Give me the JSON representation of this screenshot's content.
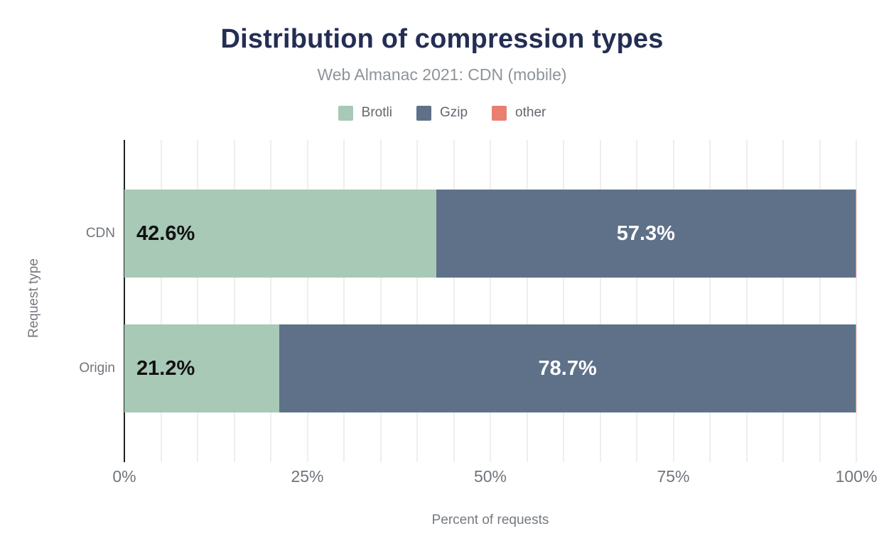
{
  "header": {
    "title": "Distribution of compression types",
    "subtitle": "Web Almanac 2021: CDN (mobile)"
  },
  "colors": {
    "title_navy": "#242e54",
    "subtitle_gray": "#8e9399",
    "legend_text_gray": "#63686e",
    "axis_text_gray": "#70757b",
    "axis_title_gray": "#757a80",
    "axis_line": "#202124",
    "gridline": "#eeeeee",
    "brotli": "#a7c9b6",
    "gzip": "#5e7189",
    "other": "#e87f70",
    "label_on_brotli": "#111111",
    "label_on_gzip": "#ffffff"
  },
  "legend": [
    {
      "label": "Brotli",
      "color_key": "brotli"
    },
    {
      "label": "Gzip",
      "color_key": "gzip"
    },
    {
      "label": "other",
      "color_key": "other"
    }
  ],
  "chart_data": {
    "type": "bar",
    "orientation": "horizontal",
    "stacked": true,
    "title": "Distribution of compression types",
    "subtitle": "Web Almanac 2021: CDN (mobile)",
    "categories": [
      "CDN",
      "Origin"
    ],
    "series": [
      {
        "name": "Brotli",
        "color_key": "brotli",
        "values": [
          42.6,
          21.2
        ],
        "labels": [
          "42.6%",
          "21.2%"
        ],
        "label_color_key": "label_on_brotli",
        "label_align": "start"
      },
      {
        "name": "Gzip",
        "color_key": "gzip",
        "values": [
          57.3,
          78.7
        ],
        "labels": [
          "57.3%",
          "78.7%"
        ],
        "label_color_key": "label_on_gzip",
        "label_align": "center"
      },
      {
        "name": "other",
        "color_key": "other",
        "values": [
          0.1,
          0.1
        ],
        "labels": [
          "",
          ""
        ],
        "label_color_key": "label_on_gzip",
        "label_align": "center"
      }
    ],
    "xlabel": "Percent of requests",
    "ylabel": "Request type",
    "xlim": [
      0,
      100
    ],
    "x_ticks": [
      {
        "value": 0,
        "label": "0%"
      },
      {
        "value": 25,
        "label": "25%"
      },
      {
        "value": 50,
        "label": "50%"
      },
      {
        "value": 75,
        "label": "75%"
      },
      {
        "value": 100,
        "label": "100%"
      }
    ],
    "grid_step_percent": 5,
    "grid": true,
    "legend_position": "top"
  }
}
